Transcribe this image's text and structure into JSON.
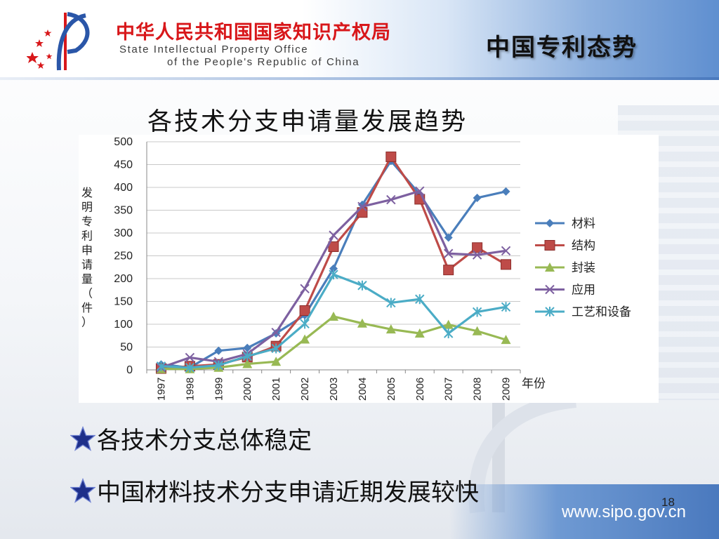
{
  "header": {
    "org_name_cn": "中华人民共和国国家知识产权局",
    "org_name_en_line1": "State Intellectual Property Office",
    "org_name_en_line2": "of the People's Republic of China",
    "slide_heading": "中国专利态势"
  },
  "colors": {
    "header_blue": "#5f8fd0",
    "org_red": "#d8171a",
    "star_blue": "#1e2f8a"
  },
  "chart_data": {
    "type": "line",
    "title": "各技术分支申请量发展趋势",
    "xlabel": "年份",
    "ylabel": "发明专利申请量（件）",
    "ylabel_chars": [
      "发",
      "明",
      "专",
      "利",
      "申",
      "请",
      "量",
      "（",
      "件",
      "）"
    ],
    "ylim": [
      0,
      500
    ],
    "yticks": [
      0,
      50,
      100,
      150,
      200,
      250,
      300,
      350,
      400,
      450,
      500
    ],
    "x": [
      "1997",
      "1998",
      "1999",
      "2000",
      "2001",
      "2002",
      "2003",
      "2004",
      "2005",
      "2006",
      "2007",
      "2008",
      "2009"
    ],
    "grid": true,
    "legend_position": "right",
    "series": [
      {
        "name": "材料",
        "color": "#4a7ebb",
        "marker": "diamond",
        "values": [
          12,
          5,
          42,
          48,
          80,
          120,
          222,
          362,
          458,
          385,
          290,
          377,
          391
        ]
      },
      {
        "name": "结构",
        "color": "#be4b48",
        "marker": "square",
        "values": [
          3,
          8,
          12,
          28,
          52,
          130,
          270,
          345,
          467,
          374,
          219,
          268,
          231
        ]
      },
      {
        "name": "封装",
        "color": "#98b954",
        "marker": "triangle",
        "values": [
          2,
          2,
          5,
          13,
          18,
          67,
          117,
          102,
          89,
          80,
          99,
          85,
          66
        ]
      },
      {
        "name": "应用",
        "color": "#7d60a0",
        "marker": "x",
        "values": [
          5,
          27,
          18,
          35,
          82,
          178,
          295,
          358,
          373,
          392,
          255,
          252,
          261
        ]
      },
      {
        "name": "工艺和设备",
        "color": "#4bacc6",
        "marker": "asterisk",
        "values": [
          8,
          5,
          10,
          30,
          47,
          101,
          209,
          185,
          147,
          155,
          80,
          127,
          138
        ]
      }
    ]
  },
  "bullets": [
    "各技术分支总体稳定",
    "中国材料技术分支申请近期发展较快"
  ],
  "footer": {
    "page_number": "18",
    "url": "www.sipo.gov.cn"
  }
}
